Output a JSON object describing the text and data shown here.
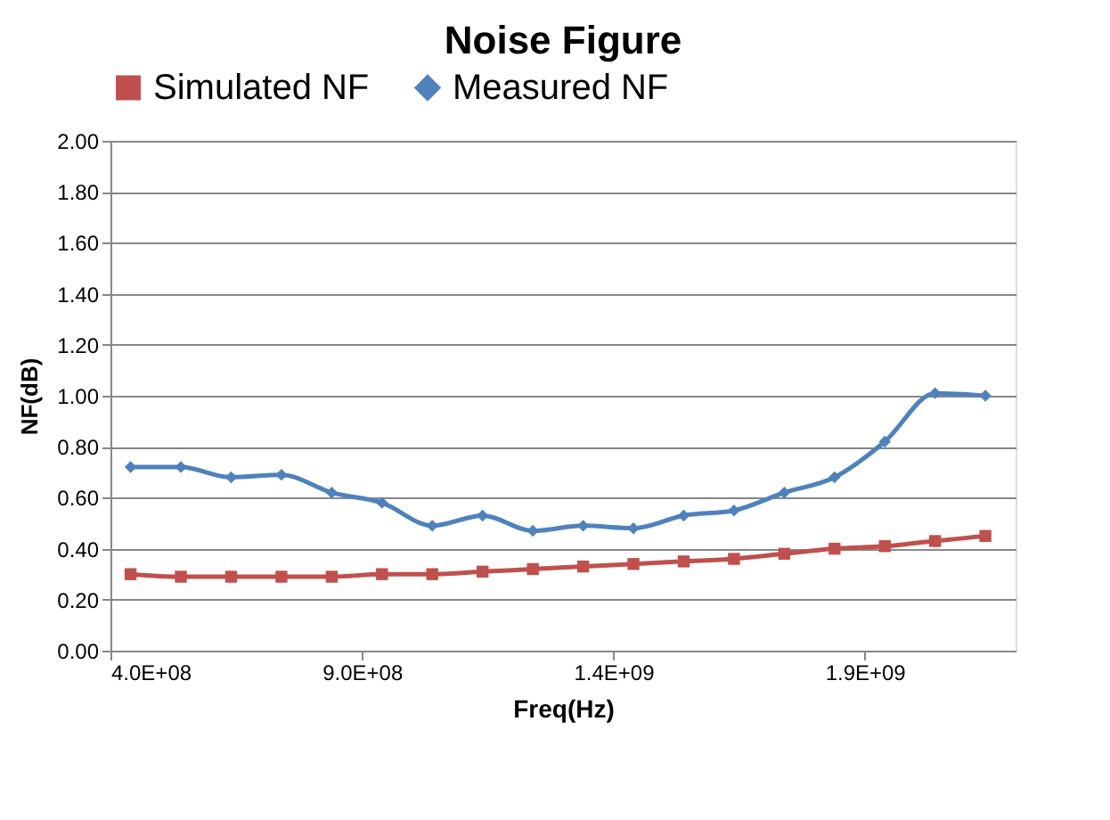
{
  "chart_data": {
    "type": "line",
    "title": "Noise Figure",
    "xlabel": "Freq(Hz)",
    "ylabel": "NF(dB)",
    "xlim": [
      400000000,
      2200000000
    ],
    "xticks": [
      {
        "value": 400000000,
        "label": "4.0E+08"
      },
      {
        "value": 900000000,
        "label": "9.0E+08"
      },
      {
        "value": 1400000000,
        "label": "1.4E+09"
      },
      {
        "value": 1900000000,
        "label": "1.9E+09"
      }
    ],
    "ylim": [
      0,
      2
    ],
    "yticks": [
      {
        "value": 0,
        "label": "0.00"
      },
      {
        "value": 0.2,
        "label": "0.20"
      },
      {
        "value": 0.4,
        "label": "0.40"
      },
      {
        "value": 0.6,
        "label": "0.60"
      },
      {
        "value": 0.8,
        "label": "0.80"
      },
      {
        "value": 1.0,
        "label": "1.00"
      },
      {
        "value": 1.2,
        "label": "1.20"
      },
      {
        "value": 1.4,
        "label": "1.40"
      },
      {
        "value": 1.6,
        "label": "1.60"
      },
      {
        "value": 1.8,
        "label": "1.80"
      },
      {
        "value": 2.0,
        "label": "2.00"
      }
    ],
    "grid": "y",
    "legend": "top",
    "line_style": "solid",
    "series": [
      {
        "name": "Simulated NF",
        "color": "#c0504d",
        "marker": "square",
        "x": [
          440000000,
          540000000,
          640000000,
          740000000,
          840000000,
          940000000,
          1040000000,
          1140000000,
          1240000000,
          1340000000,
          1440000000,
          1540000000,
          1640000000,
          1740000000,
          1840000000,
          1940000000,
          2040000000,
          2140000000
        ],
        "values": [
          0.3,
          0.29,
          0.29,
          0.29,
          0.29,
          0.3,
          0.3,
          0.31,
          0.32,
          0.33,
          0.34,
          0.35,
          0.36,
          0.38,
          0.4,
          0.41,
          0.43,
          0.45
        ]
      },
      {
        "name": "Measured NF",
        "color": "#4f81bd",
        "marker": "diamond",
        "x": [
          440000000,
          540000000,
          640000000,
          740000000,
          840000000,
          940000000,
          1040000000,
          1140000000,
          1240000000,
          1340000000,
          1440000000,
          1540000000,
          1640000000,
          1740000000,
          1840000000,
          1940000000,
          2040000000,
          2140000000
        ],
        "values": [
          0.72,
          0.72,
          0.68,
          0.69,
          0.62,
          0.58,
          0.49,
          0.53,
          0.47,
          0.49,
          0.48,
          0.53,
          0.55,
          0.62,
          0.68,
          0.82,
          1.01,
          1.0
        ]
      }
    ]
  }
}
